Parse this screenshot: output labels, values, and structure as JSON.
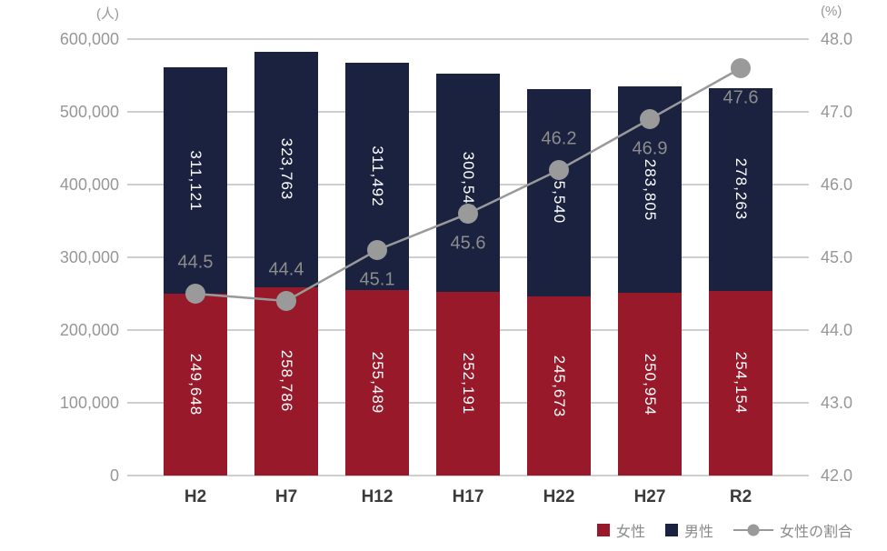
{
  "chart_data": {
    "type": "bar",
    "subtype": "stacked-bars-with-line-overlay",
    "categories": [
      "H2",
      "H7",
      "H12",
      "H17",
      "H22",
      "H27",
      "R2"
    ],
    "series": [
      {
        "name": "女性",
        "type": "bar",
        "stack": "population",
        "color": "#97192A",
        "values": [
          249648,
          258786,
          255489,
          252191,
          245673,
          250954,
          254154
        ],
        "data_labels": [
          "249,648",
          "258,786",
          "255,489",
          "252,191",
          "245,673",
          "250,954",
          "254,154"
        ]
      },
      {
        "name": "男性",
        "type": "bar",
        "stack": "population",
        "color": "#1A2240",
        "values": [
          311121,
          323763,
          311492,
          300547,
          285540,
          283805,
          278263
        ],
        "data_labels": [
          "311,121",
          "323,763",
          "311,492",
          "300,547",
          "285,540",
          "283,805",
          "278,263"
        ]
      },
      {
        "name": "女性の割合",
        "type": "line",
        "axis": "right",
        "color": "#999999",
        "dot_color": "#9A9A9A",
        "values": [
          44.5,
          44.4,
          45.1,
          45.6,
          46.2,
          46.9,
          47.6
        ],
        "data_labels": [
          "44.5",
          "44.4",
          "45.1",
          "45.6",
          "46.2",
          "46.9",
          "47.6"
        ],
        "label_positions": [
          "above",
          "above",
          "below",
          "below",
          "above",
          "below",
          "below"
        ]
      }
    ],
    "left_axis": {
      "title": "(人)",
      "min": 0,
      "max": 600000,
      "step": 100000,
      "tick_labels": [
        "0",
        "100,000",
        "200,000",
        "300,000",
        "400,000",
        "500,000",
        "600,000"
      ]
    },
    "right_axis": {
      "title": "(%)",
      "min": 42.0,
      "max": 48.0,
      "step": 1.0,
      "tick_labels": [
        "42.0",
        "43.0",
        "44.0",
        "45.0",
        "46.0",
        "47.0",
        "48.0"
      ]
    },
    "grid": true,
    "legend_position": "bottom-right",
    "legend": [
      {
        "key": "female",
        "label": "女性",
        "swatch": "square",
        "color": "#97192A"
      },
      {
        "key": "male",
        "label": "男性",
        "swatch": "square",
        "color": "#1A2240"
      },
      {
        "key": "female-ratio",
        "label": "女性の割合",
        "swatch": "line-dot",
        "color": "#999999"
      }
    ]
  },
  "styles": {
    "background": "#FFFFFF",
    "gridline_color": "#CFCFCF",
    "axis_tick_color": "#979797",
    "x_label_color": "#3B3B3B",
    "bar_label_color": "#FFFFFF",
    "ratio_label_color": "#8C8C8C",
    "legend_text_color": "#8A8A8A",
    "line_color": "#999999",
    "dot_color": "#9A9A9A"
  }
}
